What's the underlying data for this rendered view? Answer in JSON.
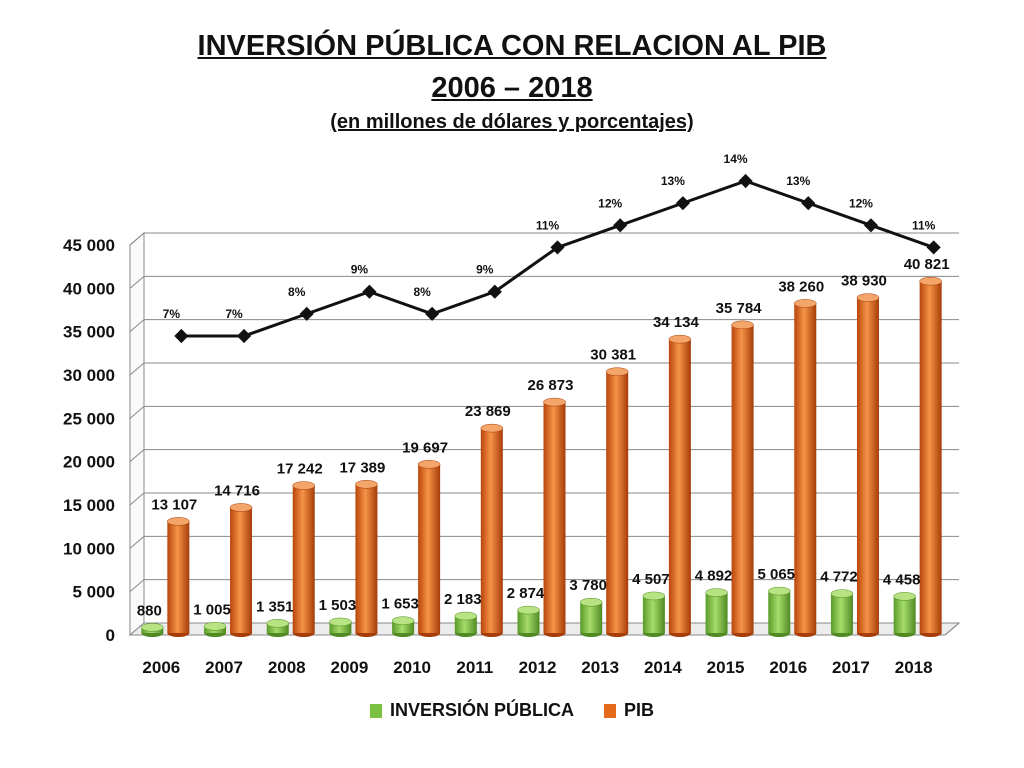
{
  "chart_data": {
    "type": "bar",
    "title": "INVERSIÓN PÚBLICA CON RELACION AL PIB",
    "subtitle": "2006 – 2018",
    "subtitle2": "(en millones de dólares y porcentajes)",
    "categories": [
      "2006",
      "2007",
      "2008",
      "2009",
      "2010",
      "2011",
      "2012",
      "2013",
      "2014",
      "2015",
      "2016",
      "2017",
      "2018"
    ],
    "series": [
      {
        "name": "INVERSIÓN PÚBLICA",
        "color": "#7cc142",
        "values": [
          880,
          1005,
          1351,
          1503,
          1653,
          2183,
          2874,
          3780,
          4507,
          4892,
          5065,
          4772,
          4458
        ],
        "labels": [
          "880",
          "1 005",
          "1 351",
          "1 503",
          "1 653",
          "2 183",
          "2 874",
          "3 780",
          "4 507",
          "4 892",
          "5 065",
          "4 772",
          "4 458"
        ]
      },
      {
        "name": "PIB",
        "color": "#e56a1c",
        "values": [
          13107,
          14716,
          17242,
          17389,
          19697,
          23869,
          26873,
          30381,
          34134,
          35784,
          38260,
          38930,
          40821
        ],
        "labels": [
          "13 107",
          "14 716",
          "17 242",
          "17 389",
          "19 697",
          "23 869",
          "26 873",
          "30 381",
          "34 134",
          "35 784",
          "38 260",
          "38 930",
          "40 821"
        ]
      }
    ],
    "ratio": {
      "values": [
        7,
        7,
        8,
        9,
        8,
        9,
        11,
        12,
        13,
        14,
        13,
        12,
        11
      ],
      "labels": [
        "7%",
        "7%",
        "8%",
        "9%",
        "8%",
        "9%",
        "11%",
        "12%",
        "13%",
        "14%",
        "13%",
        "12%",
        "11%"
      ]
    },
    "ylim": [
      0,
      45000
    ],
    "yticks": [
      0,
      5000,
      10000,
      15000,
      20000,
      25000,
      30000,
      35000,
      40000,
      45000
    ],
    "ytick_labels": [
      "0",
      "5 000",
      "10 000",
      "15 000",
      "20 000",
      "25 000",
      "30 000",
      "35 000",
      "40 000",
      "45 000"
    ],
    "grid": true,
    "legend": "bottom"
  }
}
